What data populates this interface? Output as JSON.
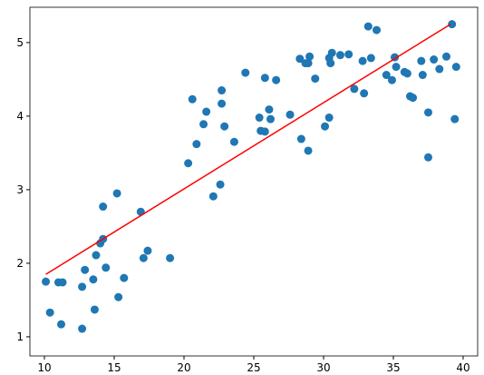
{
  "chart_data": {
    "type": "scatter",
    "x": [
      10.1,
      10.4,
      11.0,
      11.3,
      11.2,
      12.7,
      12.7,
      12.9,
      13.5,
      13.6,
      13.7,
      14.0,
      14.2,
      14.2,
      14.4,
      15.2,
      15.3,
      15.7,
      16.9,
      17.1,
      17.4,
      19.0,
      20.3,
      20.6,
      20.9,
      21.4,
      21.6,
      22.1,
      22.6,
      22.7,
      22.7,
      22.9,
      23.6,
      24.4,
      25.4,
      25.5,
      25.8,
      25.8,
      26.1,
      26.2,
      26.6,
      27.6,
      28.3,
      28.4,
      28.7,
      28.9,
      29.0,
      28.9,
      29.4,
      30.1,
      30.4,
      30.4,
      30.5,
      30.6,
      31.2,
      31.8,
      32.2,
      32.8,
      32.9,
      33.2,
      33.4,
      33.8,
      34.5,
      34.9,
      35.1,
      35.2,
      35.8,
      36.0,
      36.2,
      36.4,
      37.0,
      37.1,
      37.5,
      37.5,
      37.9,
      38.3,
      38.8,
      39.2,
      39.4,
      39.5
    ],
    "values": [
      1.75,
      1.33,
      1.74,
      1.74,
      1.17,
      1.11,
      1.68,
      1.91,
      1.78,
      1.37,
      2.11,
      2.27,
      2.77,
      2.33,
      1.94,
      2.95,
      1.54,
      1.8,
      2.7,
      2.07,
      2.17,
      2.07,
      3.36,
      4.23,
      3.62,
      3.89,
      4.06,
      2.91,
      3.07,
      4.35,
      4.17,
      3.86,
      3.65,
      4.59,
      3.98,
      3.8,
      3.79,
      4.52,
      4.09,
      3.96,
      4.49,
      4.02,
      4.78,
      3.69,
      4.72,
      4.72,
      4.81,
      3.53,
      4.51,
      3.86,
      4.79,
      3.98,
      4.72,
      4.86,
      4.83,
      4.84,
      4.37,
      4.75,
      4.31,
      5.22,
      4.79,
      5.17,
      4.56,
      4.49,
      4.8,
      4.67,
      4.6,
      4.58,
      4.27,
      4.25,
      4.75,
      4.56,
      4.05,
      3.44,
      4.77,
      4.64,
      4.81,
      5.25,
      3.96,
      4.67
    ],
    "color": "#1f77b4",
    "fit_line": {
      "x": [
        10.1,
        39.1
      ],
      "values": [
        1.85,
        5.25
      ],
      "color": "#ff0000"
    },
    "xlim": [
      8.96,
      41.04
    ],
    "ylim": [
      0.74,
      5.48
    ],
    "xticks": [
      10,
      15,
      20,
      25,
      30,
      35,
      40
    ],
    "yticks": [
      1,
      2,
      3,
      4,
      5
    ]
  }
}
